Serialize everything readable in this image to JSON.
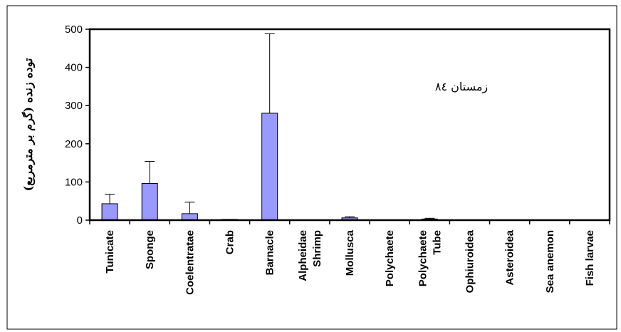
{
  "chart_data": {
    "type": "bar",
    "categories": [
      "Tunicate",
      "Sponge",
      "Coelentratae",
      "Crab",
      "Barnacle",
      "Alpheidae Shrimp",
      "Mollusca",
      "Polychaete",
      "Polychaete Tube",
      "Ophiuroidea",
      "Asteroidea",
      "Sea anemon",
      "Fish larvae"
    ],
    "category_lines": [
      [
        "Tunicate"
      ],
      [
        "Sponge"
      ],
      [
        "Coelentratae"
      ],
      [
        "Crab"
      ],
      [
        "Barnacle"
      ],
      [
        "Alpheidae",
        "Shrimp"
      ],
      [
        "Mollusca"
      ],
      [
        "Polychaete"
      ],
      [
        "Polychaete",
        "Tube"
      ],
      [
        "Ophiuroidea"
      ],
      [
        "Asteroidea"
      ],
      [
        "Sea anemon"
      ],
      [
        "Fish larvae"
      ]
    ],
    "values": [
      43,
      96,
      17,
      2,
      280,
      0,
      6,
      0,
      3,
      0,
      0,
      0,
      0
    ],
    "errors": [
      25,
      58,
      30,
      0,
      208,
      0,
      3,
      0,
      2,
      0,
      0,
      0,
      0
    ],
    "ylim": [
      0,
      500
    ],
    "yticks": [
      0,
      100,
      200,
      300,
      400,
      500
    ],
    "ylabel": "توده زنده (گرم بر مترمربع)",
    "annotation": "زمستان ٨٤",
    "bar_color": "#9999ff",
    "grid": false
  }
}
